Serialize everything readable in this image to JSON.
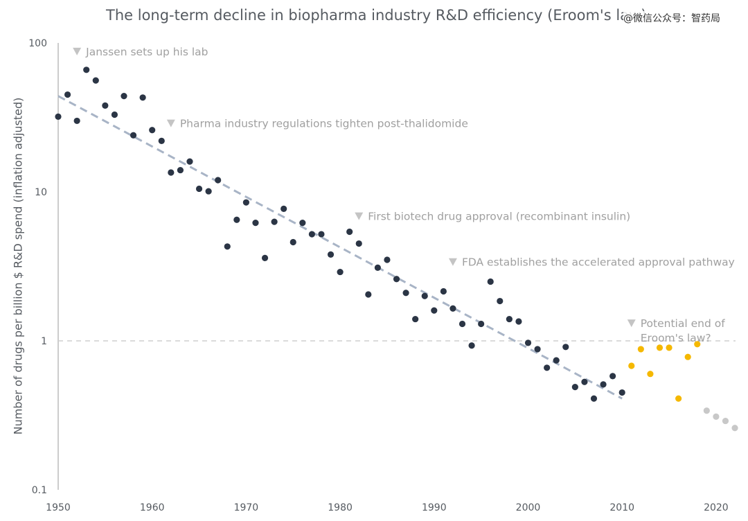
{
  "watermark": "@微信公众号：智药局",
  "chart_data": {
    "type": "scatter",
    "title": "The long-term decline in biopharma industry R&D efficiency (Eroom's law)",
    "xlabel": "",
    "ylabel": "Number of drugs per billion $ R&D spend (inflation adjusted)",
    "xlim": [
      1950,
      2022
    ],
    "ylim": [
      0.1,
      100
    ],
    "yscale": "log",
    "x_ticks": [
      "1950",
      "1960",
      "1970",
      "1980",
      "1990",
      "2000",
      "2010",
      "2020"
    ],
    "y_ticks": [
      "0.1",
      "1",
      "10",
      "100"
    ],
    "grid": false,
    "reference_line": {
      "y": 1,
      "style": "dashed"
    },
    "colors": {
      "historic": "#2b3545",
      "recent": "#f5b800",
      "projected": "#c8c8c8",
      "trend": "#a8b4c6",
      "annotation": "#a0a0a0"
    },
    "series": [
      {
        "color_key": "historic",
        "points": [
          [
            1950,
            32
          ],
          [
            1951,
            45
          ],
          [
            1952,
            30
          ],
          [
            1953,
            66
          ],
          [
            1954,
            56
          ],
          [
            1955,
            38
          ],
          [
            1956,
            33
          ],
          [
            1957,
            44
          ],
          [
            1958,
            24
          ],
          [
            1959,
            43
          ],
          [
            1960,
            26
          ],
          [
            1961,
            22
          ],
          [
            1962,
            13.5
          ],
          [
            1963,
            14
          ],
          [
            1964,
            16
          ],
          [
            1965,
            10.5
          ],
          [
            1966,
            10.1
          ],
          [
            1967,
            12
          ],
          [
            1968,
            4.3
          ],
          [
            1969,
            6.5
          ],
          [
            1970,
            8.5
          ],
          [
            1971,
            6.2
          ],
          [
            1972,
            3.6
          ],
          [
            1973,
            6.3
          ],
          [
            1974,
            7.7
          ],
          [
            1975,
            4.6
          ],
          [
            1976,
            6.2
          ],
          [
            1977,
            5.2
          ],
          [
            1978,
            5.2
          ],
          [
            1979,
            3.8
          ],
          [
            1980,
            2.9
          ],
          [
            1981,
            5.4
          ],
          [
            1982,
            4.5
          ],
          [
            1983,
            2.05
          ],
          [
            1984,
            3.1
          ],
          [
            1985,
            3.5
          ],
          [
            1986,
            2.6
          ],
          [
            1987,
            2.1
          ],
          [
            1988,
            1.4
          ],
          [
            1989,
            2.0
          ],
          [
            1990,
            1.6
          ],
          [
            1991,
            2.15
          ],
          [
            1992,
            1.65
          ],
          [
            1993,
            1.3
          ],
          [
            1994,
            0.93
          ],
          [
            1995,
            1.3
          ],
          [
            1996,
            2.5
          ],
          [
            1997,
            1.85
          ],
          [
            1998,
            1.4
          ],
          [
            1999,
            1.35
          ],
          [
            2000,
            0.97
          ],
          [
            2001,
            0.88
          ],
          [
            2002,
            0.66
          ],
          [
            2003,
            0.74
          ],
          [
            2004,
            0.91
          ],
          [
            2005,
            0.49
          ],
          [
            2006,
            0.53
          ],
          [
            2007,
            0.41
          ],
          [
            2008,
            0.51
          ],
          [
            2009,
            0.58
          ],
          [
            2010,
            0.45
          ]
        ]
      },
      {
        "color_key": "recent",
        "points": [
          [
            2011,
            0.68
          ],
          [
            2012,
            0.88
          ],
          [
            2013,
            0.6
          ],
          [
            2014,
            0.9
          ],
          [
            2015,
            0.9
          ],
          [
            2016,
            0.41
          ],
          [
            2017,
            0.78
          ],
          [
            2018,
            0.95
          ]
        ]
      },
      {
        "color_key": "projected",
        "points": [
          [
            2019,
            0.34
          ],
          [
            2020,
            0.31
          ],
          [
            2021,
            0.29
          ],
          [
            2022,
            0.26
          ]
        ]
      }
    ],
    "trendline": {
      "from": [
        1950,
        44
      ],
      "to": [
        2010,
        0.41
      ]
    },
    "annotations": [
      {
        "year": 1952,
        "value": 88,
        "lines": [
          "Janssen sets up his lab"
        ]
      },
      {
        "year": 1962,
        "value": 29,
        "lines": [
          "Pharma industry regulations tighten post-thalidomide"
        ]
      },
      {
        "year": 1982,
        "value": 6.9,
        "lines": [
          "First biotech drug approval (recombinant insulin)"
        ]
      },
      {
        "year": 1992,
        "value": 3.4,
        "lines": [
          "FDA establishes the accelerated approval pathway"
        ]
      },
      {
        "year": 2011,
        "value": 1.32,
        "lines": [
          "Potential end of",
          "Eroom's law?"
        ]
      }
    ]
  }
}
